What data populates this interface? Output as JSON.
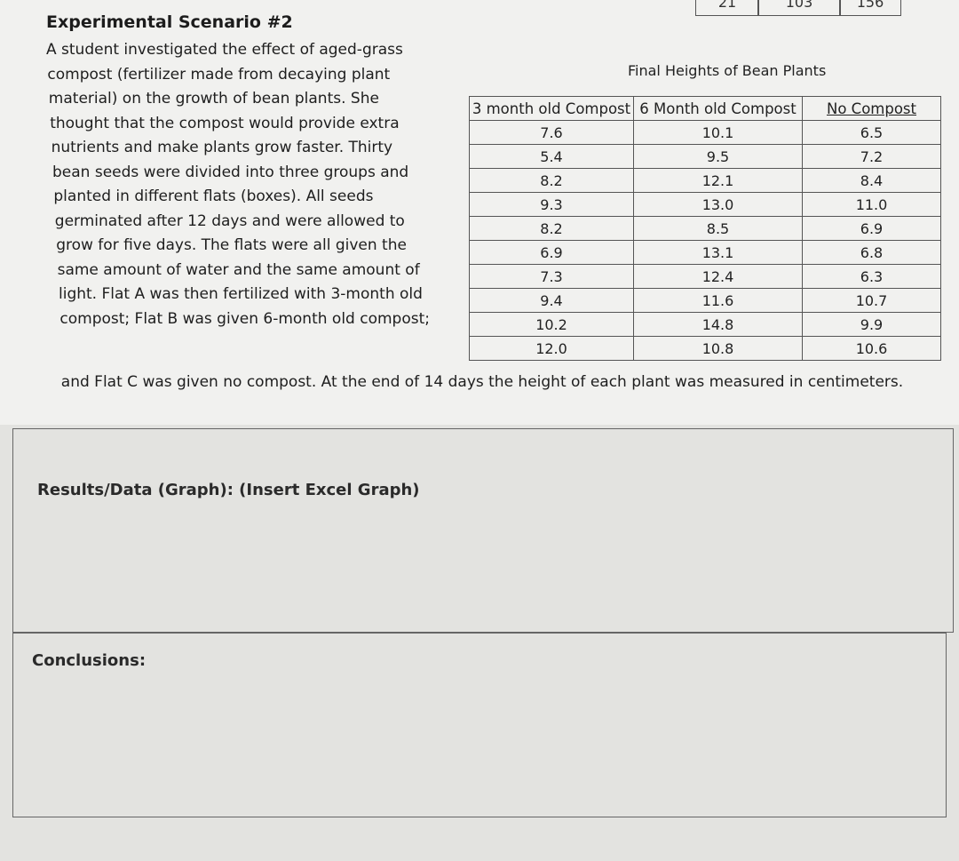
{
  "previous_table_fragment": [
    "21",
    "103",
    "156"
  ],
  "scenario": {
    "title": "Experimental Scenario #2",
    "lines": [
      "A student investigated the effect of aged-grass",
      "compost (fertilizer made from decaying plant",
      "material) on the growth of bean plants. She",
      "thought that the compost would provide extra",
      "nutrients and make plants grow faster. Thirty",
      "bean seeds were divided into three groups and",
      "planted in different flats (boxes). All seeds",
      "germinated after 12 days and were allowed to",
      "grow for five days. The flats were all given the",
      "same amount of water and the same amount of",
      "light. Flat A was then fertilized with 3-month old",
      "compost; Flat B was given 6-month old compost;",
      "and Flat C was given no compost. At the end of 14 days the height of each plant was measured in centimeters."
    ]
  },
  "table": {
    "title": "Final Heights of Bean Plants",
    "columns": [
      "3 month old Compost",
      "6 Month old Compost",
      "No Compost"
    ],
    "rows": [
      [
        "7.6",
        "10.1",
        "6.5"
      ],
      [
        "5.4",
        "9.5",
        "7.2"
      ],
      [
        "8.2",
        "12.1",
        "8.4"
      ],
      [
        "9.3",
        "13.0",
        "11.0"
      ],
      [
        "8.2",
        "8.5",
        "6.9"
      ],
      [
        "6.9",
        "13.1",
        "6.8"
      ],
      [
        "7.3",
        "12.4",
        "6.3"
      ],
      [
        "9.4",
        "11.6",
        "10.7"
      ],
      [
        "10.2",
        "14.8",
        "9.9"
      ],
      [
        "12.0",
        "10.8",
        "10.6"
      ]
    ]
  },
  "sections": {
    "results": "Results/Data (Graph): (Insert Excel Graph)",
    "conclusions": "Conclusions:"
  }
}
